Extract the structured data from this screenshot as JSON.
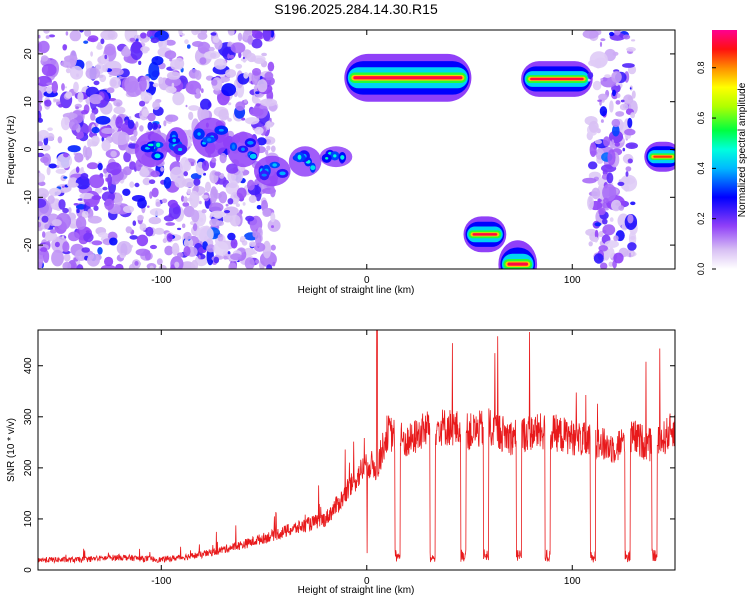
{
  "title": "S196.2025.284.14.30.R15",
  "chart_data": [
    {
      "type": "heatmap",
      "title": "S196.2025.284.14.30.R15",
      "xlabel": "Height of straight line (km)",
      "ylabel": "Frequency (Hz)",
      "xlim": [
        -160,
        150
      ],
      "ylim": [
        -25,
        25
      ],
      "xticks": [
        -100,
        0,
        100
      ],
      "yticks": [
        -20,
        -10,
        0,
        10,
        20
      ],
      "colorbar": {
        "label": "Normalized spectral amplitude",
        "ticks": [
          0.0,
          0.2,
          0.4,
          0.6,
          0.8
        ],
        "tick_labels": [
          "0.0",
          "0.2",
          "0.4",
          "0.6",
          "0.8"
        ],
        "range": [
          0,
          0.95
        ],
        "colors": [
          "#f0f0ff",
          "#c8a0f0",
          "#8000ff",
          "#0000ff",
          "#00ffff",
          "#00ff00",
          "#ffff00",
          "#ff8000",
          "#ff0000",
          "#ff0080"
        ]
      },
      "features": [
        {
          "name": "noise-left",
          "x": [
            -160,
            -45
          ],
          "y": [
            -25,
            25
          ],
          "amplitude": 0.15
        },
        {
          "name": "rising-track-1",
          "x": [
            -110,
            -100
          ],
          "y": [
            -2,
            2
          ],
          "amplitude": 0.55
        },
        {
          "name": "rising-track-2",
          "x": [
            -95,
            -90
          ],
          "y": [
            0,
            3
          ],
          "amplitude": 0.5
        },
        {
          "name": "rising-track-3",
          "x": [
            -82,
            -70
          ],
          "y": [
            0,
            5
          ],
          "amplitude": 0.45
        },
        {
          "name": "rising-track-4",
          "x": [
            -65,
            -55
          ],
          "y": [
            -2,
            2
          ],
          "amplitude": 0.45
        },
        {
          "name": "rising-track-5",
          "x": [
            -52,
            -40
          ],
          "y": [
            -6,
            -3
          ],
          "amplitude": 0.45
        },
        {
          "name": "rising-track-6",
          "x": [
            -35,
            -25
          ],
          "y": [
            -4,
            -1
          ],
          "amplitude": 0.5
        },
        {
          "name": "rising-track-7",
          "x": [
            -20,
            -10
          ],
          "y": [
            -2,
            -1
          ],
          "amplitude": 0.55
        },
        {
          "name": "band-15hz-a",
          "x": [
            -8,
            48
          ],
          "y": [
            14,
            16
          ],
          "amplitude": 0.95
        },
        {
          "name": "band-minus18hz",
          "x": [
            50,
            65
          ],
          "y": [
            -18.5,
            -17
          ],
          "amplitude": 0.95
        },
        {
          "name": "band-minus24hz",
          "x": [
            67,
            80
          ],
          "y": [
            -25,
            -23
          ],
          "amplitude": 0.95
        },
        {
          "name": "band-15hz-b",
          "x": [
            78,
            107
          ],
          "y": [
            14,
            15.5
          ],
          "amplitude": 0.95
        },
        {
          "name": "noise-right",
          "x": [
            108,
            130
          ],
          "y": [
            -25,
            25
          ],
          "amplitude": 0.15
        },
        {
          "name": "band-minus2hz",
          "x": [
            138,
            150
          ],
          "y": [
            -2,
            -1
          ],
          "amplitude": 0.9
        }
      ]
    },
    {
      "type": "line",
      "xlabel": "Height of straight line (km)",
      "ylabel": "SNR (10 * v/v)",
      "xlim": [
        -160,
        150
      ],
      "ylim": [
        0,
        470
      ],
      "xticks": [
        -100,
        0,
        100
      ],
      "yticks": [
        0,
        100,
        200,
        300,
        400
      ],
      "series": [
        {
          "name": "SNR",
          "color": "#e8191b",
          "x": [
            -160,
            -140,
            -120,
            -100,
            -80,
            -60,
            -40,
            -20,
            -10,
            0,
            5,
            10,
            20,
            30,
            40,
            50,
            60,
            70,
            80,
            90,
            100,
            110,
            120,
            130,
            140,
            150
          ],
          "y": [
            20,
            20,
            25,
            20,
            30,
            50,
            75,
            100,
            150,
            210,
            200,
            270,
            250,
            280,
            280,
            270,
            280,
            260,
            270,
            270,
            260,
            250,
            240,
            260,
            240,
            280
          ]
        }
      ]
    }
  ]
}
